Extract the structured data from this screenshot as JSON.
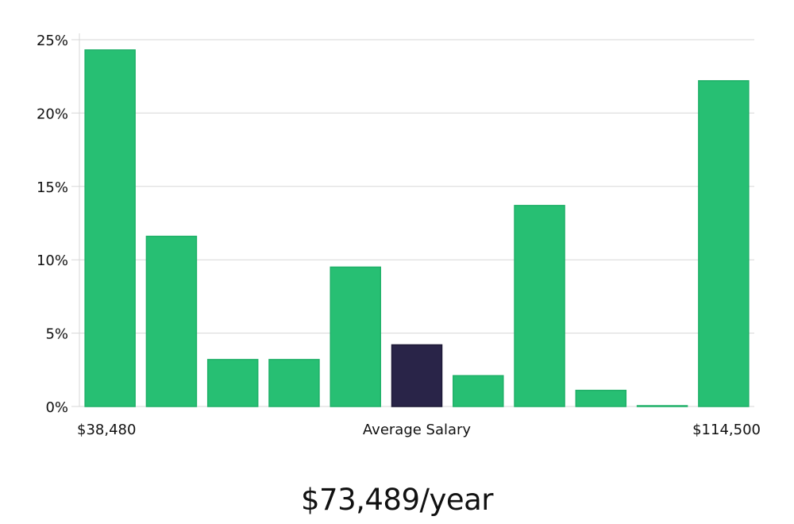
{
  "chart_data": {
    "type": "bar",
    "x_start_label": "$38,480",
    "x_middle_label": "Average Salary",
    "x_end_label": "$114,500",
    "y_unit": "%",
    "ylim": [
      0,
      25
    ],
    "yticks": [
      0,
      5,
      10,
      15,
      20,
      25
    ],
    "ytick_labels": [
      "0%",
      "5%",
      "10%",
      "15%",
      "20%",
      "25%"
    ],
    "grid": true,
    "values": [
      24.3,
      11.6,
      3.2,
      3.2,
      9.5,
      4.2,
      2.1,
      13.7,
      1.1,
      0.05,
      22.2
    ],
    "highlight_index": 5,
    "bar_color": "#27bf73",
    "highlight_color": "#292448"
  },
  "summary": {
    "average_salary": "$73,489/year"
  }
}
